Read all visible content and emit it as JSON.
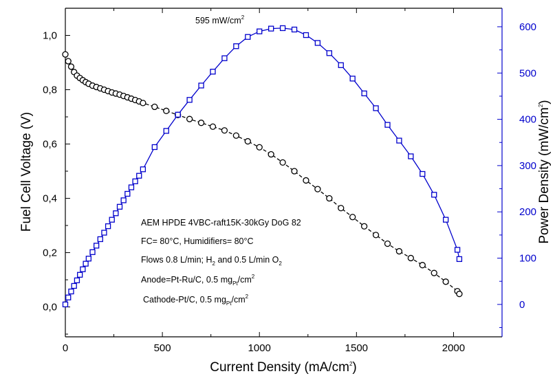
{
  "chart_data": {
    "type": "line",
    "xlabel": "Current Density (mA/cm",
    "xlabel_sup": "2",
    "xlabel_close": ")",
    "ylabel_left": "Fuel Cell Voltage (V)",
    "ylabel_right": "Power Density (mW/cm",
    "ylabel_right_sup": "2",
    "ylabel_right_close": ")",
    "xlim": [
      0,
      2250
    ],
    "ylim_left": [
      -0.11,
      1.1
    ],
    "ylim_right": [
      -70,
      640
    ],
    "x_ticks": [
      0,
      500,
      1000,
      1500,
      2000
    ],
    "x_tick_labels": [
      "0",
      "500",
      "1000",
      "1500",
      "2000"
    ],
    "y_left_ticks": [
      0.0,
      0.2,
      0.4,
      0.6,
      0.8,
      1.0
    ],
    "y_left_tick_labels": [
      "0,0",
      "0,2",
      "0,4",
      "0,6",
      "0,8",
      "1,0"
    ],
    "y_right_ticks": [
      0,
      100,
      200,
      300,
      400,
      500,
      600
    ],
    "y_right_tick_labels": [
      "0",
      "100",
      "200",
      "300",
      "400",
      "500",
      "600"
    ],
    "colors": {
      "voltage": "#000000",
      "power": "#0000cc",
      "right_axis": "#0000cc"
    },
    "series": [
      {
        "axis": "left",
        "marker": "circle",
        "x": [
          0,
          15,
          30,
          45,
          60,
          75,
          90,
          105,
          120,
          140,
          160,
          180,
          200,
          220,
          240,
          260,
          280,
          300,
          320,
          340,
          360,
          380,
          400,
          460,
          520,
          580,
          640,
          700,
          760,
          820,
          880,
          940,
          1000,
          1060,
          1120,
          1180,
          1240,
          1300,
          1360,
          1420,
          1480,
          1540,
          1600,
          1660,
          1720,
          1780,
          1840,
          1900,
          1960,
          2020,
          2030
        ],
        "y": [
          0.93,
          0.905,
          0.885,
          0.865,
          0.852,
          0.843,
          0.835,
          0.828,
          0.822,
          0.815,
          0.81,
          0.805,
          0.8,
          0.795,
          0.79,
          0.786,
          0.782,
          0.777,
          0.772,
          0.767,
          0.762,
          0.757,
          0.751,
          0.737,
          0.722,
          0.707,
          0.692,
          0.678,
          0.664,
          0.65,
          0.631,
          0.61,
          0.588,
          0.562,
          0.532,
          0.5,
          0.466,
          0.434,
          0.4,
          0.364,
          0.331,
          0.297,
          0.265,
          0.233,
          0.205,
          0.18,
          0.154,
          0.125,
          0.093,
          0.058,
          0.048
        ]
      },
      {
        "axis": "right",
        "marker": "square",
        "x": [
          0,
          15,
          30,
          45,
          60,
          75,
          90,
          105,
          120,
          140,
          160,
          180,
          200,
          220,
          240,
          260,
          280,
          300,
          320,
          340,
          360,
          380,
          400,
          460,
          520,
          580,
          640,
          700,
          760,
          820,
          880,
          940,
          1000,
          1060,
          1120,
          1180,
          1240,
          1300,
          1360,
          1420,
          1480,
          1540,
          1600,
          1660,
          1720,
          1780,
          1840,
          1900,
          1960,
          2020,
          2030
        ],
        "y": [
          0,
          15,
          28,
          40,
          52,
          64,
          76,
          88,
          99,
          113,
          127,
          141,
          155,
          169,
          183,
          197,
          211,
          225,
          239,
          253,
          266,
          278,
          292,
          340,
          375,
          410,
          442,
          473,
          503,
          532,
          558,
          578,
          590,
          596,
          597,
          594,
          582,
          565,
          543,
          517,
          488,
          456,
          424,
          388,
          354,
          320,
          282,
          237,
          183,
          118,
          98
        ]
      }
    ],
    "annotations": {
      "peak": "595 mW/cm",
      "peak_sup": "2",
      "line1": "AEM HPDE 4VBC-raft15K-30kGy DoG 82",
      "line2": "FC= 80°C, Humidifiers= 80°C",
      "line3_a": "Flows 0.8 L/min; H",
      "line3_sub1": "2",
      "line3_b": " and 0.5 L/min O",
      "line3_sub2": "2",
      "line4_a": "Anode=Pt-Ru/C, 0.5 mg",
      "line4_sub": "Pt",
      "line4_b": "/cm",
      "line4_sup": "2",
      "line5_a": "Cathode-Pt/C, 0.5 mg",
      "line5_sub": "Pt",
      "line5_b": "/cm",
      "line5_sup": "2"
    }
  }
}
